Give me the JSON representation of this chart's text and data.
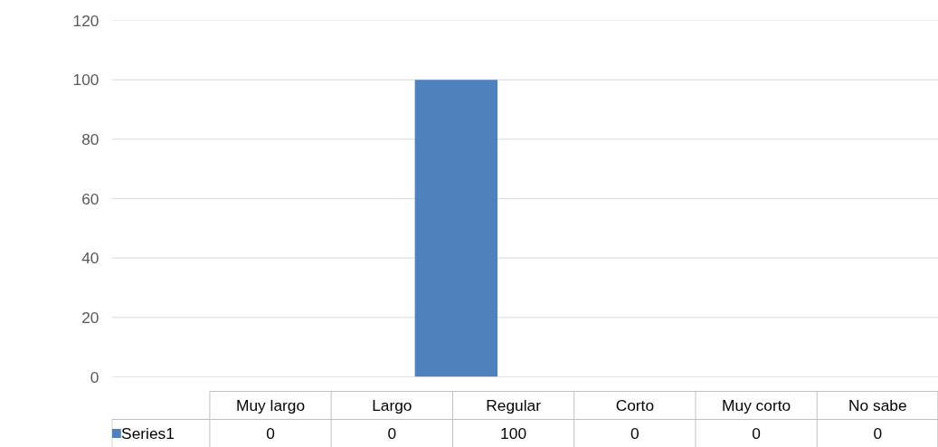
{
  "chart_data": {
    "type": "bar",
    "categories": [
      "Muy largo",
      "Largo",
      "Regular",
      "Corto",
      "Muy corto",
      "No sabe"
    ],
    "series": [
      {
        "name": "Series1",
        "color": "#4f81bd",
        "values": [
          0,
          0,
          100,
          0,
          0,
          0
        ]
      }
    ],
    "ylim": [
      0,
      120
    ],
    "yticks": [
      0,
      20,
      40,
      60,
      80,
      100,
      120
    ],
    "grid": "y",
    "data_labels": true,
    "legend": "bottom"
  }
}
